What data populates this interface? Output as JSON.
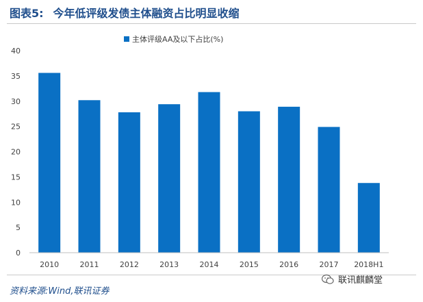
{
  "header": {
    "figure_label": "图表5:",
    "title": "今年低评级发债主体融资占比明显收缩"
  },
  "source": {
    "text": "资料来源:Wind,联讯证券"
  },
  "watermark": {
    "text": "联讯麒麟堂"
  },
  "colors": {
    "bar": "#0a70c4",
    "title": "#1f4e8c",
    "axis": "#bfbfbf",
    "tick_text": "#404040"
  },
  "chart_data": {
    "type": "bar",
    "categories": [
      "2010",
      "2011",
      "2012",
      "2013",
      "2014",
      "2015",
      "2016",
      "2017",
      "2018H1"
    ],
    "series": [
      {
        "name": "主体评级AA及以下占比(%)",
        "values": [
          35.6,
          30.2,
          27.8,
          29.4,
          31.8,
          28.0,
          28.9,
          24.9,
          13.8
        ]
      }
    ],
    "ylim": [
      0,
      40
    ],
    "yticks": [
      0,
      5,
      10,
      15,
      20,
      25,
      30,
      35,
      40
    ],
    "legend_position": "top-center",
    "grid": false
  }
}
